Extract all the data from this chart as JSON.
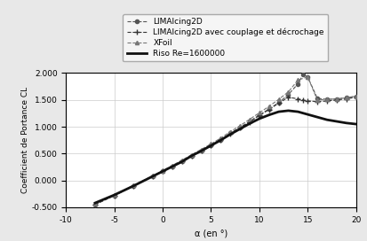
{
  "title": "",
  "xlabel": "α (en °)",
  "ylabel": "Coefficient de Portance CL",
  "xlim": [
    -10,
    20
  ],
  "ylim": [
    -0.5,
    2.0
  ],
  "xticks": [
    -10,
    -5,
    0,
    5,
    10,
    15,
    20
  ],
  "yticks": [
    -0.5,
    0.0,
    0.5,
    1.0,
    1.5,
    2.0
  ],
  "legend_labels": [
    "LIMAlcing2D",
    "LIMAlcing2D avec couplage et décrochage",
    "XFoil",
    "Riso Re=1600000"
  ],
  "background_color": "#e8e8e8",
  "plot_bg": "#ffffff",
  "series": {
    "lima2d": {
      "x": [
        -7,
        -5,
        -3,
        -1,
        0,
        1,
        2,
        3,
        4,
        5,
        6,
        7,
        8,
        9,
        10,
        11,
        12,
        13,
        14,
        14.5,
        15,
        16,
        17,
        18,
        19,
        20
      ],
      "y": [
        -0.45,
        -0.28,
        -0.1,
        0.08,
        0.17,
        0.26,
        0.36,
        0.46,
        0.56,
        0.66,
        0.76,
        0.88,
        0.99,
        1.1,
        1.22,
        1.33,
        1.45,
        1.6,
        1.8,
        1.97,
        1.93,
        1.53,
        1.51,
        1.52,
        1.54,
        1.57
      ],
      "color": "#555555",
      "linestyle": "--",
      "marker": "o",
      "markersize": 3,
      "linewidth": 0.8
    },
    "lima2d_couplage": {
      "x": [
        -7,
        -5,
        -3,
        -1,
        0,
        1,
        2,
        3,
        4,
        5,
        6,
        7,
        8,
        9,
        10,
        11,
        12,
        13,
        14,
        14.5,
        15,
        16,
        17,
        18,
        19,
        20
      ],
      "y": [
        -0.45,
        -0.28,
        -0.1,
        0.08,
        0.17,
        0.26,
        0.36,
        0.46,
        0.56,
        0.66,
        0.76,
        0.87,
        0.98,
        1.09,
        1.21,
        1.32,
        1.44,
        1.55,
        1.52,
        1.5,
        1.48,
        1.47,
        1.48,
        1.5,
        1.52,
        1.55
      ],
      "color": "#333333",
      "linestyle": "--",
      "marker": "+",
      "markersize": 5,
      "linewidth": 0.8
    },
    "xfoil": {
      "x": [
        -7,
        -5,
        -3,
        -1,
        0,
        1,
        2,
        3,
        4,
        5,
        6,
        7,
        8,
        9,
        10,
        11,
        12,
        13,
        14,
        15,
        16,
        17,
        18,
        19,
        20
      ],
      "y": [
        -0.44,
        -0.27,
        -0.09,
        0.09,
        0.18,
        0.28,
        0.38,
        0.48,
        0.58,
        0.68,
        0.79,
        0.91,
        1.02,
        1.14,
        1.26,
        1.38,
        1.51,
        1.65,
        1.87,
        1.93,
        1.5,
        1.51,
        1.52,
        1.54,
        1.57
      ],
      "color": "#777777",
      "linestyle": "--",
      "marker": "^",
      "markersize": 3,
      "linewidth": 0.8
    },
    "riso": {
      "x": [
        -7,
        -5,
        -3,
        -1,
        0,
        1,
        2,
        3,
        4,
        5,
        6,
        7,
        8,
        9,
        10,
        11,
        12,
        13,
        14,
        15,
        16,
        17,
        18,
        19,
        20
      ],
      "y": [
        -0.42,
        -0.27,
        -0.1,
        0.08,
        0.17,
        0.26,
        0.35,
        0.46,
        0.55,
        0.65,
        0.75,
        0.86,
        0.96,
        1.06,
        1.15,
        1.22,
        1.28,
        1.3,
        1.28,
        1.23,
        1.18,
        1.13,
        1.1,
        1.07,
        1.05
      ],
      "color": "#111111",
      "linestyle": "-",
      "marker": null,
      "markersize": 0,
      "linewidth": 2.0
    }
  },
  "grid": true,
  "grid_color": "#cccccc",
  "grid_linestyle": "-",
  "grid_linewidth": 0.5
}
